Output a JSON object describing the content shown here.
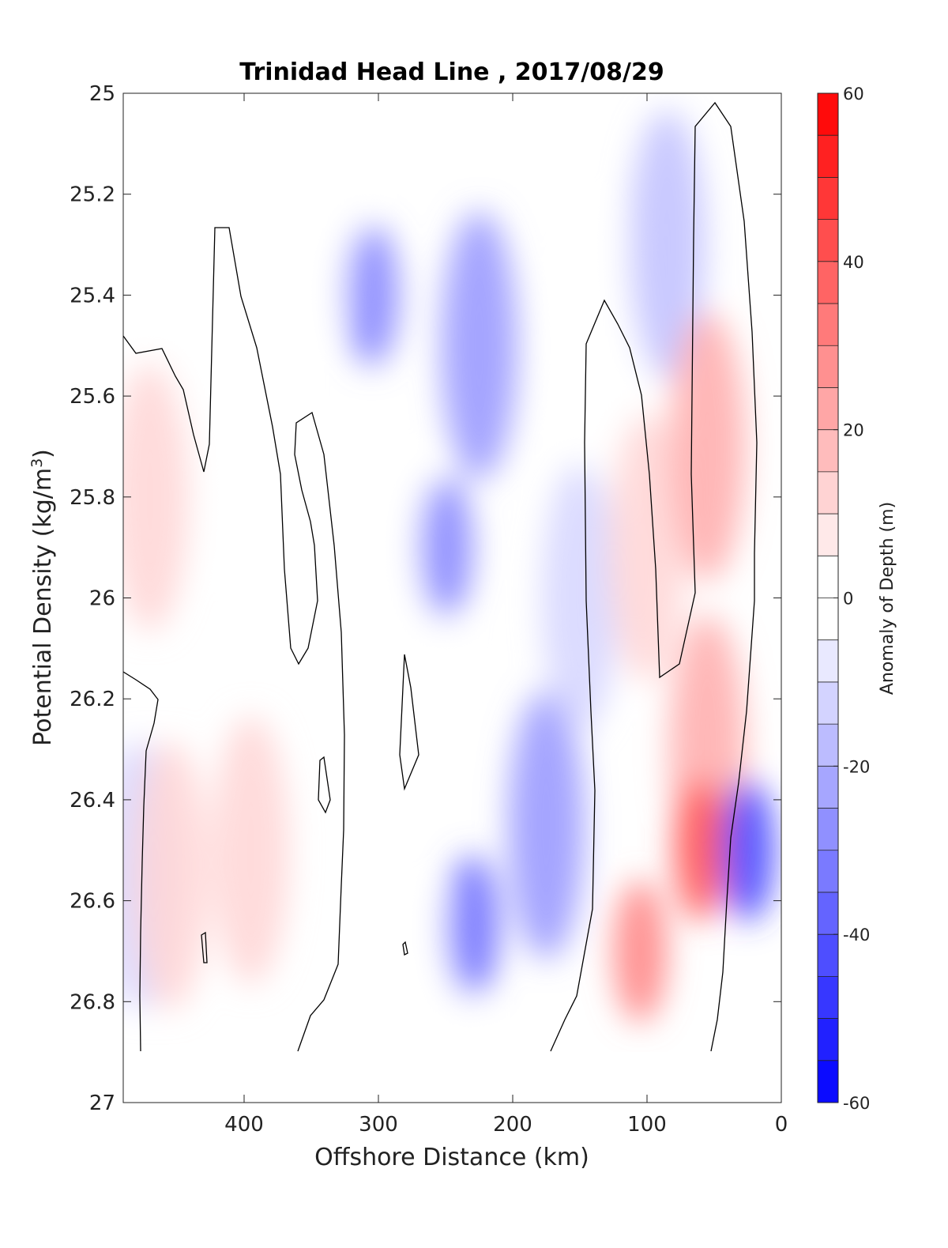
{
  "chart_data": {
    "type": "heatmap",
    "title": "Trinidad Head Line , 2017/08/29",
    "xlabel": "Offshore Distance (km)",
    "ylabel": "Potential Density (kg/m",
    "ylabel_sup": "3",
    "ylabel_close": ")",
    "xlim": [
      490,
      0
    ],
    "ylim": [
      25,
      27
    ],
    "x_reversed": true,
    "y_reversed": true,
    "x_ticks": [
      400,
      300,
      200,
      100,
      0
    ],
    "x_tick_labels": [
      "400",
      "300",
      "200",
      "100",
      "0"
    ],
    "y_ticks": [
      25,
      25.2,
      25.4,
      25.6,
      25.8,
      26,
      26.2,
      26.4,
      26.6,
      26.8,
      27
    ],
    "y_tick_labels": [
      "25",
      "25.2",
      "25.4",
      "25.6",
      "25.8",
      "26",
      "26.2",
      "26.4",
      "26.6",
      "26.8",
      "27"
    ],
    "data_y_range": [
      25,
      26.9
    ],
    "colorbar": {
      "label": "Anomaly of Depth (m)",
      "range": [
        -60,
        60
      ],
      "step": 5,
      "ticks": [
        60,
        40,
        20,
        0,
        -20,
        -40,
        -60
      ],
      "tick_labels": [
        "60",
        "40",
        "20",
        "0",
        "-20",
        "-40",
        "-60"
      ],
      "color_low": "#0000ff",
      "color_mid": "#ffffff",
      "color_high": "#ff0000"
    },
    "anomaly_features_m": [
      {
        "x": 445,
        "y": 25.35,
        "value": -5
      },
      {
        "x": 470,
        "y": 25.8,
        "value": 8
      },
      {
        "x": 480,
        "y": 26.55,
        "value": -12
      },
      {
        "x": 455,
        "y": 26.55,
        "value": 12
      },
      {
        "x": 395,
        "y": 26.5,
        "value": 10
      },
      {
        "x": 390,
        "y": 25.7,
        "value": 4
      },
      {
        "x": 340,
        "y": 25.2,
        "value": -6
      },
      {
        "x": 305,
        "y": 25.4,
        "value": -28
      },
      {
        "x": 270,
        "y": 26.0,
        "value": -6
      },
      {
        "x": 255,
        "y": 26.85,
        "value": -2
      },
      {
        "x": 250,
        "y": 25.9,
        "value": -28
      },
      {
        "x": 225,
        "y": 25.5,
        "value": -25
      },
      {
        "x": 230,
        "y": 26.65,
        "value": -35
      },
      {
        "x": 175,
        "y": 26.45,
        "value": -25
      },
      {
        "x": 150,
        "y": 26.0,
        "value": -10
      },
      {
        "x": 130,
        "y": 25.5,
        "value": 3
      },
      {
        "x": 100,
        "y": 25.9,
        "value": 12
      },
      {
        "x": 85,
        "y": 25.3,
        "value": -14
      },
      {
        "x": 55,
        "y": 25.7,
        "value": 18
      },
      {
        "x": 55,
        "y": 26.3,
        "value": 22
      },
      {
        "x": 60,
        "y": 26.5,
        "value": 38
      },
      {
        "x": 105,
        "y": 26.7,
        "value": 32
      },
      {
        "x": 25,
        "y": 26.5,
        "value": -45
      }
    ]
  }
}
